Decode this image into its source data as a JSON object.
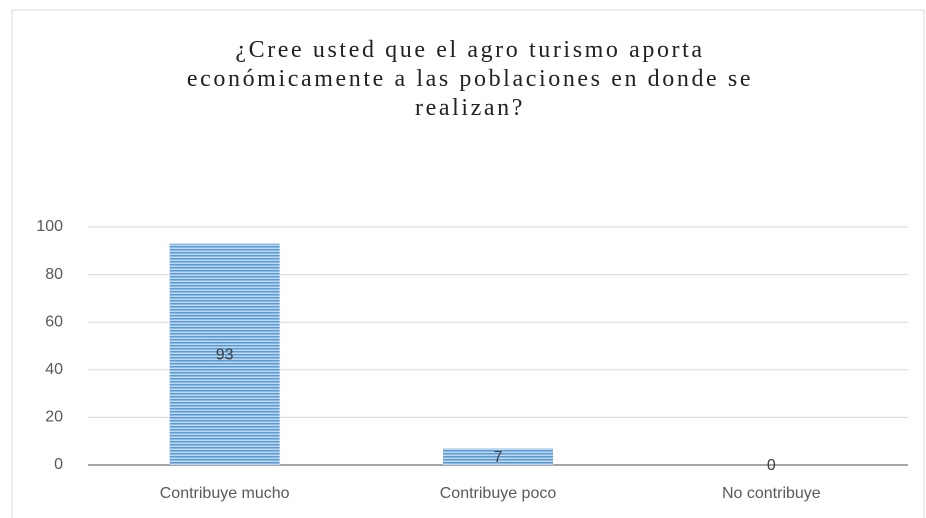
{
  "chart_data": {
    "type": "bar",
    "title": "¿Cree usted que el agro turismo aporta económicamente a las poblaciones en donde se realizan?",
    "categories": [
      "Contribuye mucho",
      "Contribuye poco",
      "No contribuye"
    ],
    "values": [
      93,
      7,
      0
    ],
    "color": "#5b9bd5",
    "ylim": [
      0,
      100
    ],
    "yticks": [
      0,
      20,
      40,
      60,
      80,
      100
    ],
    "grid": true,
    "data_labels": true
  }
}
